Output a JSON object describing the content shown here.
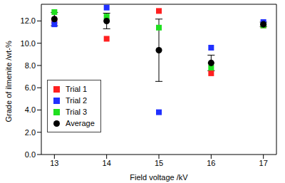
{
  "chart_data": {
    "type": "scatter",
    "x_label": "Field voltage /kV",
    "y_label": "Grade of ilmenite /wt-%",
    "x": [
      13,
      14,
      15,
      16,
      17
    ],
    "xlim": [
      12.75,
      17.25
    ],
    "xticks": [
      13,
      14,
      15,
      16,
      17
    ],
    "ylim": [
      0,
      13.5
    ],
    "yticks": [
      {
        "value": 0,
        "label": "0.0"
      },
      {
        "value": 2,
        "label": "2.0"
      },
      {
        "value": 4,
        "label": "4.0"
      },
      {
        "value": 6,
        "label": "6.0"
      },
      {
        "value": 8,
        "label": "8.0"
      },
      {
        "value": 10,
        "label": "10.0"
      },
      {
        "value": 12,
        "label": "12.0"
      }
    ],
    "legend": "lower left",
    "series": [
      {
        "name": "Trial 1",
        "color": "#ff2020",
        "marker": "square",
        "values": [
          12.0,
          10.4,
          12.9,
          7.3,
          11.6
        ]
      },
      {
        "name": "Trial 2",
        "color": "#2030ff",
        "marker": "square",
        "values": [
          11.7,
          13.2,
          3.8,
          9.6,
          11.9
        ]
      },
      {
        "name": "Trial 3",
        "color": "#20e020",
        "marker": "square",
        "values": [
          12.8,
          12.4,
          11.4,
          7.8,
          11.6
        ]
      },
      {
        "name": "Average",
        "color": "#000000",
        "marker": "circle",
        "values": [
          12.17,
          12.0,
          9.37,
          8.23,
          11.7
        ],
        "errors": [
          0.6,
          0.7,
          2.8,
          0.7,
          0.2
        ]
      }
    ]
  }
}
